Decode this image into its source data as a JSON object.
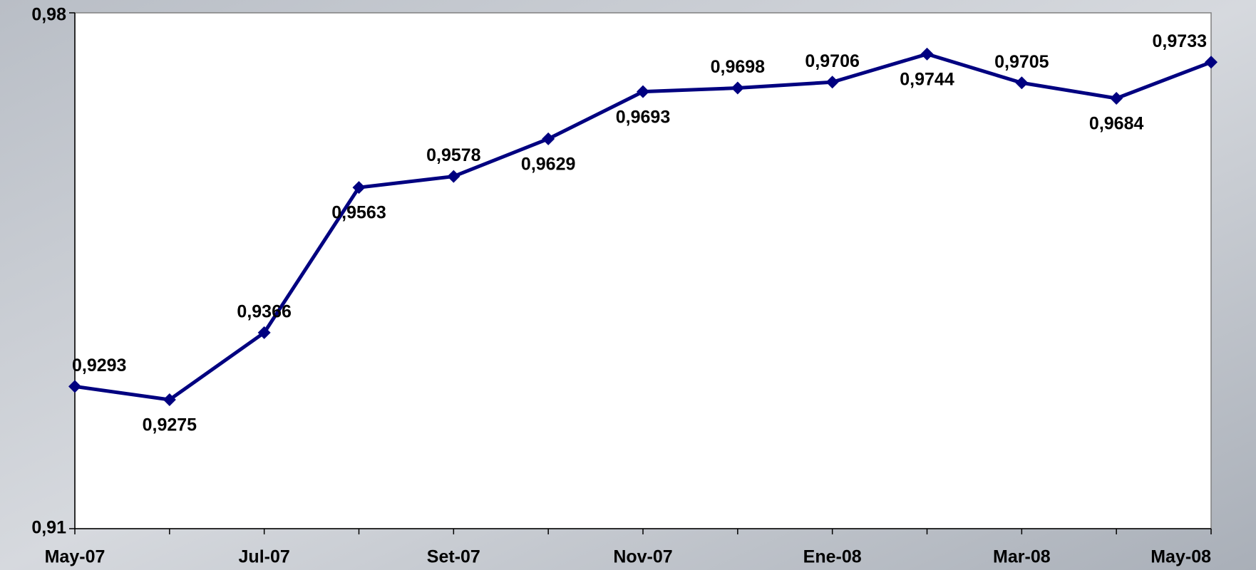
{
  "chart_data": {
    "type": "line",
    "categories": [
      "May-07",
      null,
      "Jul-07",
      null,
      "Set-07",
      null,
      "Nov-07",
      null,
      "Ene-08",
      null,
      "Mar-08",
      null,
      "May-08"
    ],
    "series": [
      {
        "color": "#000080",
        "values": [
          0.9293,
          0.9275,
          0.9366,
          0.9563,
          0.9578,
          0.9629,
          0.9693,
          0.9698,
          0.9706,
          0.9744,
          0.9705,
          0.9684,
          0.9733
        ],
        "value_labels": [
          "0,9293",
          "0,9275",
          "0,9366",
          "0,9563",
          "0,9578",
          "0,9629",
          "0,9693",
          "0,9698",
          "0,9706",
          "0,9744",
          "0,9705",
          "0,9684",
          "0,9733"
        ]
      }
    ],
    "ylim": [
      0.91,
      0.98
    ],
    "yticks": [
      {
        "value": 0.91,
        "label": "0,91"
      },
      {
        "value": 0.98,
        "label": "0,98"
      }
    ]
  }
}
